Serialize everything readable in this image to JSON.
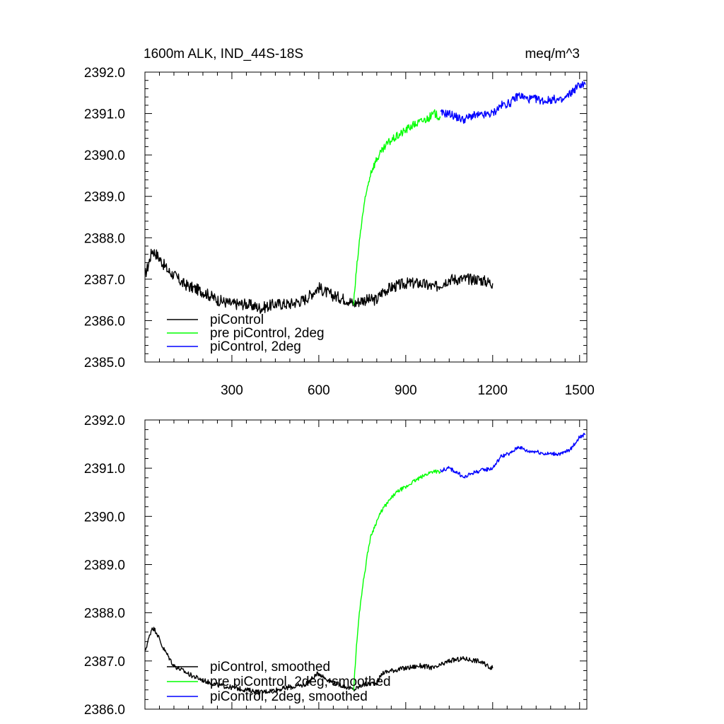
{
  "header": {
    "title": "1600m ALK, IND_44S-18S",
    "units": "meq/m^3"
  },
  "chart_data": [
    {
      "type": "line",
      "title": "1600m ALK, IND_44S-18S",
      "units": "meq/m^3",
      "xlim": [
        0,
        1525
      ],
      "ylim": [
        2385.0,
        2392.0
      ],
      "xticks": [
        300,
        600,
        900,
        1200,
        1500
      ],
      "yticks": [
        2385.0,
        2386.0,
        2387.0,
        2388.0,
        2389.0,
        2390.0,
        2391.0,
        2392.0
      ],
      "ytick_labels": [
        "2385.0",
        "2386.0",
        "2387.0",
        "2388.0",
        "2389.0",
        "2390.0",
        "2391.0",
        "2392.0"
      ],
      "legend_position": "lower-left",
      "series": [
        {
          "name": "piControl",
          "color": "#000000",
          "noise": 0.14,
          "x": [
            0,
            10,
            25,
            40,
            60,
            80,
            100,
            130,
            160,
            200,
            250,
            300,
            350,
            400,
            450,
            500,
            550,
            600,
            620,
            650,
            700,
            720,
            750,
            800,
            820,
            850,
            900,
            950,
            1000,
            1050,
            1100,
            1150,
            1200
          ],
          "y": [
            2387.1,
            2387.3,
            2387.7,
            2387.6,
            2387.4,
            2387.2,
            2387.1,
            2386.9,
            2386.8,
            2386.7,
            2386.5,
            2386.4,
            2386.4,
            2386.3,
            2386.4,
            2386.4,
            2386.5,
            2386.8,
            2386.7,
            2386.6,
            2386.5,
            2386.4,
            2386.5,
            2386.5,
            2386.7,
            2386.8,
            2386.9,
            2386.9,
            2386.8,
            2387.0,
            2387.0,
            2387.0,
            2386.9
          ]
        },
        {
          "name": "pre piControl, 2deg",
          "color": "#00ff00",
          "noise": 0.1,
          "x": [
            720,
            730,
            740,
            750,
            760,
            770,
            780,
            800,
            820,
            840,
            860,
            880,
            900,
            920,
            950,
            980,
            1000,
            1020
          ],
          "y": [
            2386.4,
            2387.2,
            2387.9,
            2388.5,
            2388.9,
            2389.3,
            2389.6,
            2389.9,
            2390.1,
            2390.3,
            2390.4,
            2390.5,
            2390.6,
            2390.7,
            2390.8,
            2390.9,
            2391.0,
            2390.9
          ]
        },
        {
          "name": "piControl, 2deg",
          "color": "#0000ff",
          "noise": 0.1,
          "x": [
            1020,
            1050,
            1080,
            1100,
            1130,
            1160,
            1200,
            1230,
            1260,
            1290,
            1320,
            1350,
            1380,
            1410,
            1440,
            1470,
            1500,
            1520
          ],
          "y": [
            2391.0,
            2391.0,
            2390.9,
            2390.85,
            2390.95,
            2390.95,
            2391.0,
            2391.2,
            2391.25,
            2391.45,
            2391.35,
            2391.35,
            2391.3,
            2391.35,
            2391.3,
            2391.5,
            2391.7,
            2391.7
          ]
        }
      ]
    },
    {
      "type": "line",
      "xlim": [
        0,
        1525
      ],
      "ylim": [
        2386.0,
        2392.0
      ],
      "xticks": [
        300,
        600,
        900,
        1200,
        1500
      ],
      "yticks": [
        2386.0,
        2387.0,
        2388.0,
        2389.0,
        2390.0,
        2391.0,
        2392.0
      ],
      "ytick_labels": [
        "2386.0",
        "2387.0",
        "2388.0",
        "2389.0",
        "2390.0",
        "2391.0",
        "2392.0"
      ],
      "legend_position": "lower-left",
      "series": [
        {
          "name": "piControl, smoothed",
          "color": "#000000",
          "noise": 0.05,
          "x": [
            0,
            10,
            25,
            40,
            60,
            80,
            100,
            130,
            160,
            200,
            250,
            300,
            350,
            400,
            450,
            500,
            550,
            600,
            620,
            650,
            700,
            720,
            750,
            800,
            820,
            850,
            900,
            950,
            1000,
            1050,
            1100,
            1150,
            1200
          ],
          "y": [
            2387.2,
            2387.4,
            2387.7,
            2387.6,
            2387.3,
            2387.1,
            2386.9,
            2386.8,
            2386.7,
            2386.6,
            2386.5,
            2386.45,
            2386.4,
            2386.35,
            2386.4,
            2386.45,
            2386.5,
            2386.75,
            2386.65,
            2386.55,
            2386.45,
            2386.4,
            2386.5,
            2386.55,
            2386.75,
            2386.8,
            2386.85,
            2386.9,
            2386.85,
            2387.0,
            2387.05,
            2387.0,
            2386.85
          ]
        },
        {
          "name": "pre piControl, 2deg, smoothed",
          "color": "#00ff00",
          "noise": 0.04,
          "x": [
            720,
            730,
            740,
            750,
            760,
            770,
            780,
            800,
            820,
            840,
            860,
            880,
            900,
            920,
            950,
            980,
            1000,
            1020
          ],
          "y": [
            2386.4,
            2387.3,
            2388.0,
            2388.5,
            2388.9,
            2389.3,
            2389.6,
            2389.9,
            2390.15,
            2390.3,
            2390.45,
            2390.55,
            2390.6,
            2390.7,
            2390.8,
            2390.9,
            2390.95,
            2390.9
          ]
        },
        {
          "name": "piControl, 2deg, smoothed",
          "color": "#0000ff",
          "noise": 0.04,
          "x": [
            1020,
            1050,
            1080,
            1100,
            1130,
            1160,
            1200,
            1230,
            1260,
            1290,
            1320,
            1350,
            1380,
            1410,
            1440,
            1470,
            1500,
            1520
          ],
          "y": [
            2390.95,
            2391.0,
            2390.9,
            2390.8,
            2390.9,
            2390.95,
            2391.0,
            2391.25,
            2391.3,
            2391.45,
            2391.35,
            2391.35,
            2391.3,
            2391.3,
            2391.3,
            2391.4,
            2391.65,
            2391.7
          ]
        }
      ]
    }
  ]
}
